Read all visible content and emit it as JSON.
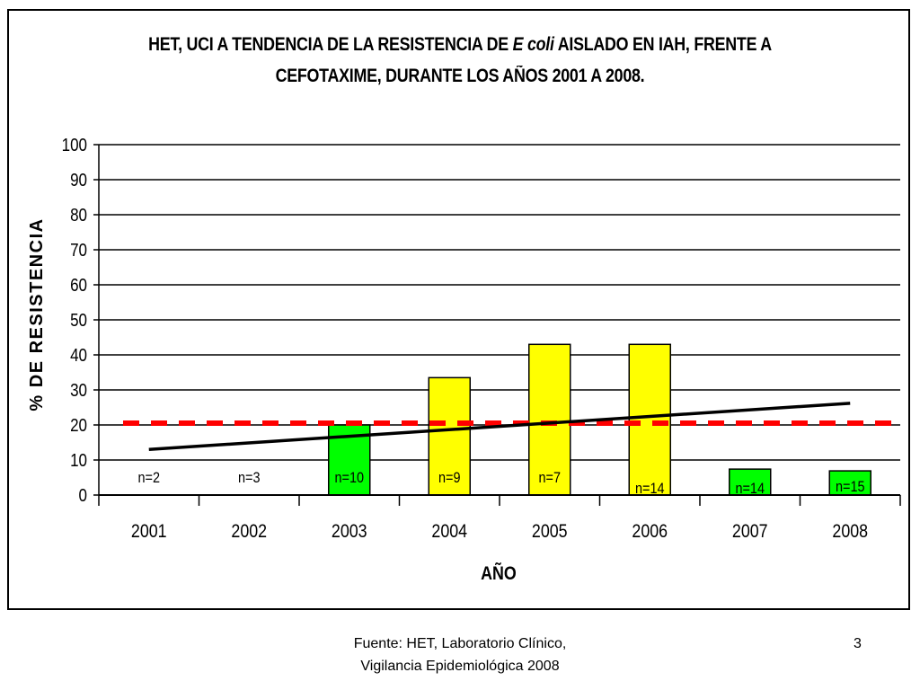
{
  "title_line1_a": "HET, UCI A TENDENCIA DE LA RESISTENCIA DE ",
  "title_line1_italic": "E coli",
  "title_line1_b": " AISLADO EN IAH, FRENTE A",
  "title_line2": "CEFOTAXIME, DURANTE LOS AÑOS 2001 A 2008.",
  "footer_line1": "Fuente: HET, Laboratorio Clínico,",
  "footer_line2": "Vigilancia Epidemiológica 2008",
  "page_number": "3",
  "chart_data": {
    "type": "bar",
    "title": "HET, UCI A TENDENCIA DE LA RESISTENCIA DE E coli AISLADO EN IAH, FRENTE A CEFOTAXIME, DURANTE LOS AÑOS 2001 A 2008.",
    "xlabel": "AÑO",
    "ylabel": "% DE RESISTENCIA",
    "ylim": [
      0,
      100
    ],
    "yticks": [
      0,
      10,
      20,
      30,
      40,
      50,
      60,
      70,
      80,
      90,
      100
    ],
    "grid": true,
    "categories": [
      "2001",
      "2002",
      "2003",
      "2004",
      "2005",
      "2006",
      "2007",
      "2008"
    ],
    "values": [
      0,
      0,
      20,
      33.5,
      43,
      43,
      7.4,
      6.9
    ],
    "bar_colors": [
      "#00ff00",
      "#00ff00",
      "#00ff00",
      "#ffff00",
      "#ffff00",
      "#ffff00",
      "#00ff00",
      "#00ff00"
    ],
    "bar_labels": [
      "n=2",
      "n=3",
      "n=10",
      "n=9",
      "n=7",
      "n=14",
      "n=14",
      "n=15"
    ],
    "trendline": {
      "type": "linear",
      "start": 13,
      "end": 26.2,
      "color": "#000000"
    },
    "reference_line": {
      "value": 20.5,
      "color": "#ff0000",
      "style": "dashed"
    }
  }
}
